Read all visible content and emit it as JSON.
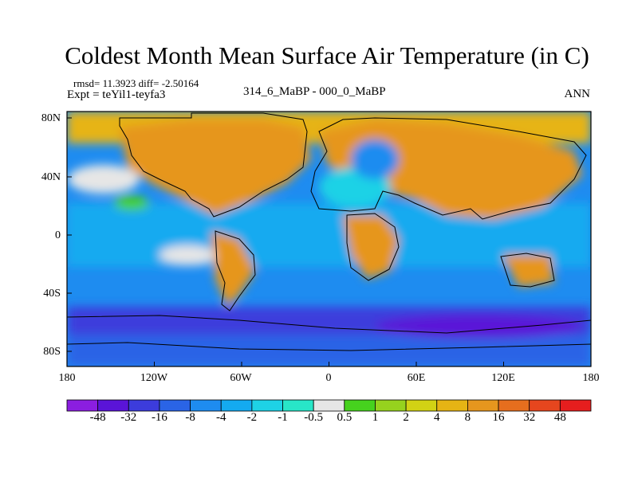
{
  "title": "Coldest Month Mean Surface Air Temperature (in C)",
  "stats": "rmsd= 11.3923 diff= -2.50164",
  "expt": "Expt = teYil1-teyfa3",
  "period": "314_6_MaBP - 000_0_MaBP",
  "season": "ANN",
  "lat_labels": [
    "80N",
    "40N",
    "0",
    "40S",
    "80S"
  ],
  "lon_labels": [
    "180",
    "120W",
    "60W",
    "0",
    "60E",
    "120E",
    "180"
  ],
  "colorbar": {
    "labels": [
      "-48",
      "-32",
      "-16",
      "-8",
      "-4",
      "-2",
      "-1",
      "-0.5",
      "0.5",
      "1",
      "2",
      "4",
      "8",
      "16",
      "32",
      "48"
    ],
    "colors": [
      "#8b1ee0",
      "#5a14d8",
      "#3c3cdc",
      "#2a64e6",
      "#1e8cf0",
      "#14aaf0",
      "#1ed2e6",
      "#28e6c8",
      "#e6e6e6",
      "#46d21e",
      "#96d21e",
      "#d2d214",
      "#e6b414",
      "#e6961e",
      "#e66e1e",
      "#e6461e",
      "#e61e1e"
    ]
  }
}
